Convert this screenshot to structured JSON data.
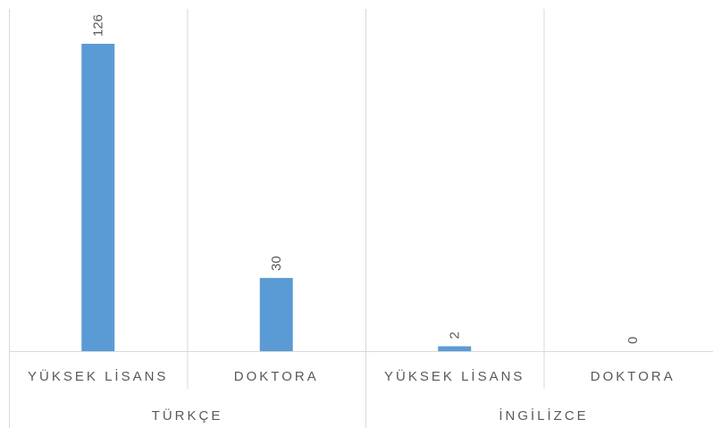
{
  "chart_data": {
    "type": "bar",
    "color": "#5b9bd5",
    "groups": [
      {
        "name": "TÜRKÇE",
        "categories": [
          "YÜKSEK LİSANS",
          "DOKTORA"
        ],
        "values": [
          126,
          30
        ]
      },
      {
        "name": "İNGİLİZCE",
        "categories": [
          "YÜKSEK LİSANS",
          "DOKTORA"
        ],
        "values": [
          2,
          0
        ]
      }
    ]
  }
}
